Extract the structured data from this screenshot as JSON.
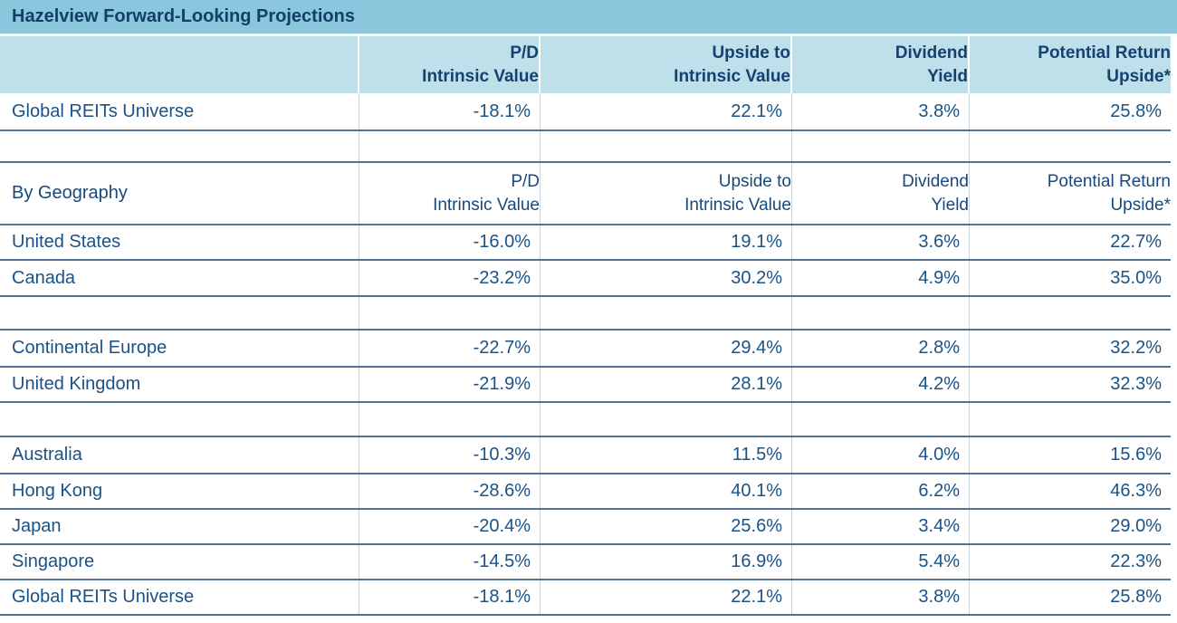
{
  "title": "Hazelview Forward-Looking Projections",
  "colors": {
    "title_bar_bg": "#8AC7DD",
    "header_bg": "#BDE0EA",
    "heading_text": "#16406F",
    "data_text": "#1A5286",
    "row_border": "#527396",
    "column_divider": "#C7D4DC"
  },
  "chart_data": {
    "type": "table",
    "title": "Hazelview Forward-Looking Projections",
    "columns": [
      {
        "line1": "P/D",
        "line2": "Intrinsic Value"
      },
      {
        "line1": "Upside to",
        "line2": "Intrinsic Value"
      },
      {
        "line1": "Dividend",
        "line2": "Yield"
      },
      {
        "line1": "Potential Return",
        "line2": "Upside*"
      }
    ],
    "geography_label": "By Geography",
    "rows": [
      {
        "label": "Global REITs Universe",
        "values": [
          "-18.1%",
          "22.1%",
          "3.8%",
          "25.8%"
        ]
      },
      {
        "label": "United States",
        "values": [
          "-16.0%",
          "19.1%",
          "3.6%",
          "22.7%"
        ]
      },
      {
        "label": "Canada",
        "values": [
          "-23.2%",
          "30.2%",
          "4.9%",
          "35.0%"
        ]
      },
      {
        "label": "Continental Europe",
        "values": [
          "-22.7%",
          "29.4%",
          "2.8%",
          "32.2%"
        ]
      },
      {
        "label": "United Kingdom",
        "values": [
          "-21.9%",
          "28.1%",
          "4.2%",
          "32.3%"
        ]
      },
      {
        "label": "Australia",
        "values": [
          "-10.3%",
          "11.5%",
          "4.0%",
          "15.6%"
        ]
      },
      {
        "label": "Hong Kong",
        "values": [
          "-28.6%",
          "40.1%",
          "6.2%",
          "46.3%"
        ]
      },
      {
        "label": "Japan",
        "values": [
          "-20.4%",
          "25.6%",
          "3.4%",
          "29.0%"
        ]
      },
      {
        "label": "Singapore",
        "values": [
          "-14.5%",
          "16.9%",
          "5.4%",
          "22.3%"
        ]
      },
      {
        "label": "Global REITs Universe",
        "values": [
          "-18.1%",
          "22.1%",
          "3.8%",
          "25.8%"
        ]
      }
    ]
  }
}
